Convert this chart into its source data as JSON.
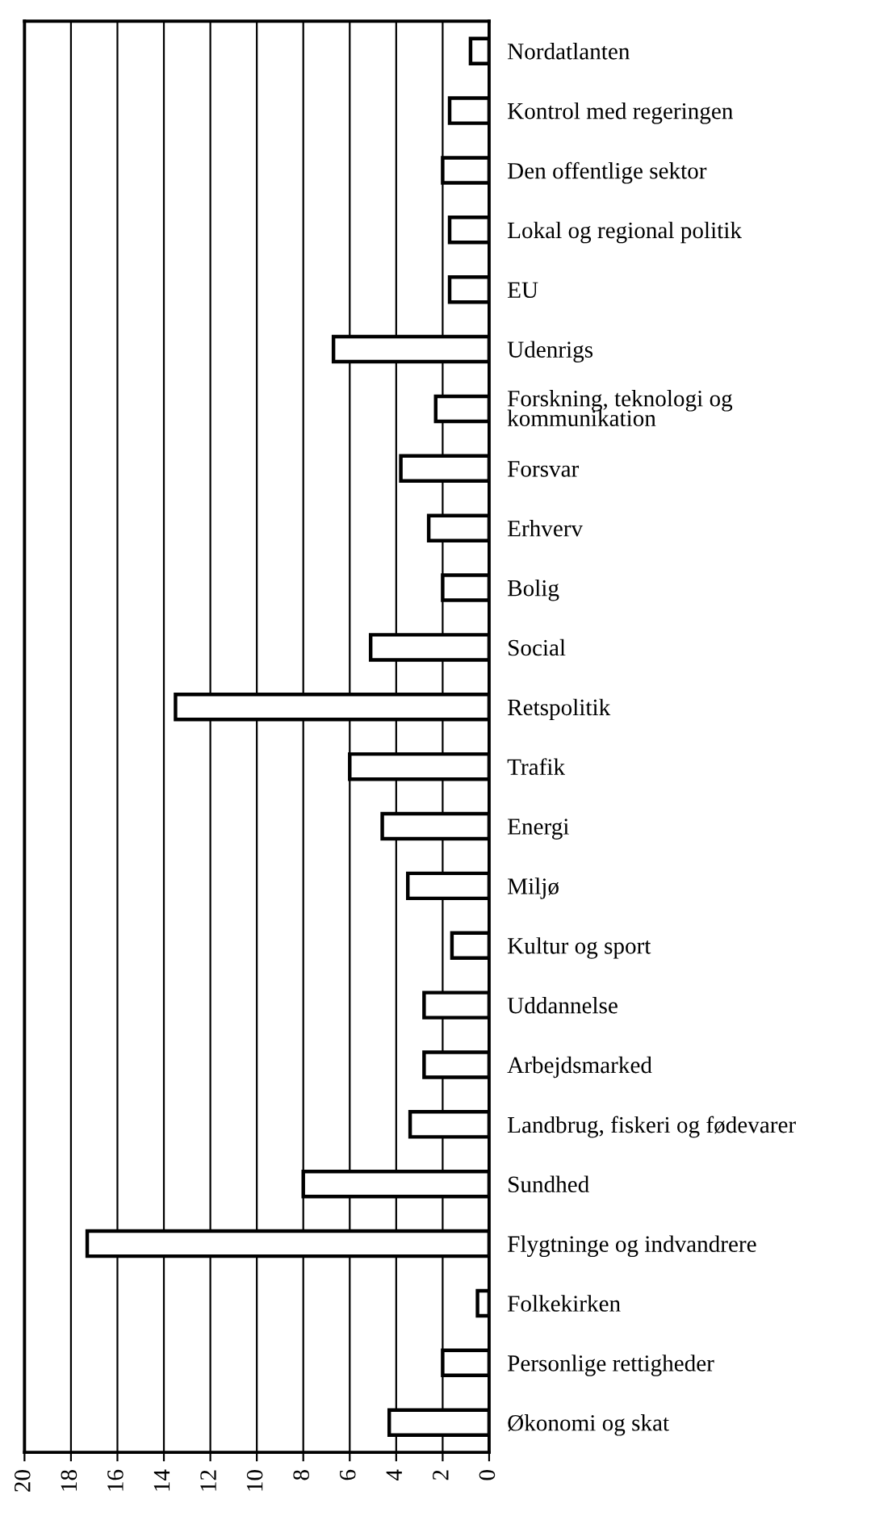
{
  "chart_data": {
    "type": "bar",
    "orientation": "horizontal",
    "categories": [
      "Nordatlanten",
      "Kontrol med regeringen",
      "Den offentlige sektor",
      "Lokal og regional politik",
      "EU",
      "Udenrigs",
      "Forskning, teknologi og\nkommunikation",
      "Forsvar",
      "Erhverv",
      "Bolig",
      "Social",
      "Retspolitik",
      "Trafik",
      "Energi",
      "Miljø",
      "Kultur og sport",
      "Uddannelse",
      "Arbejdsmarked",
      "Landbrug, fiskeri og fødevarer",
      "Sundhed",
      "Flygtninge og indvandrere",
      "Folkekirken",
      "Personlige rettigheder",
      "Økonomi og skat"
    ],
    "values": [
      0.8,
      1.7,
      2.0,
      1.7,
      1.7,
      6.7,
      2.3,
      3.8,
      2.6,
      2.0,
      5.1,
      13.5,
      6.0,
      4.6,
      3.5,
      1.6,
      2.8,
      2.8,
      3.4,
      8.0,
      17.3,
      0.5,
      2.0,
      4.3
    ],
    "color": "#ffffff",
    "xlim": [
      20,
      0
    ],
    "xticks": [
      20,
      18,
      16,
      14,
      12,
      10,
      8,
      6,
      4,
      2,
      0
    ],
    "grid": "x",
    "legend": false
  }
}
